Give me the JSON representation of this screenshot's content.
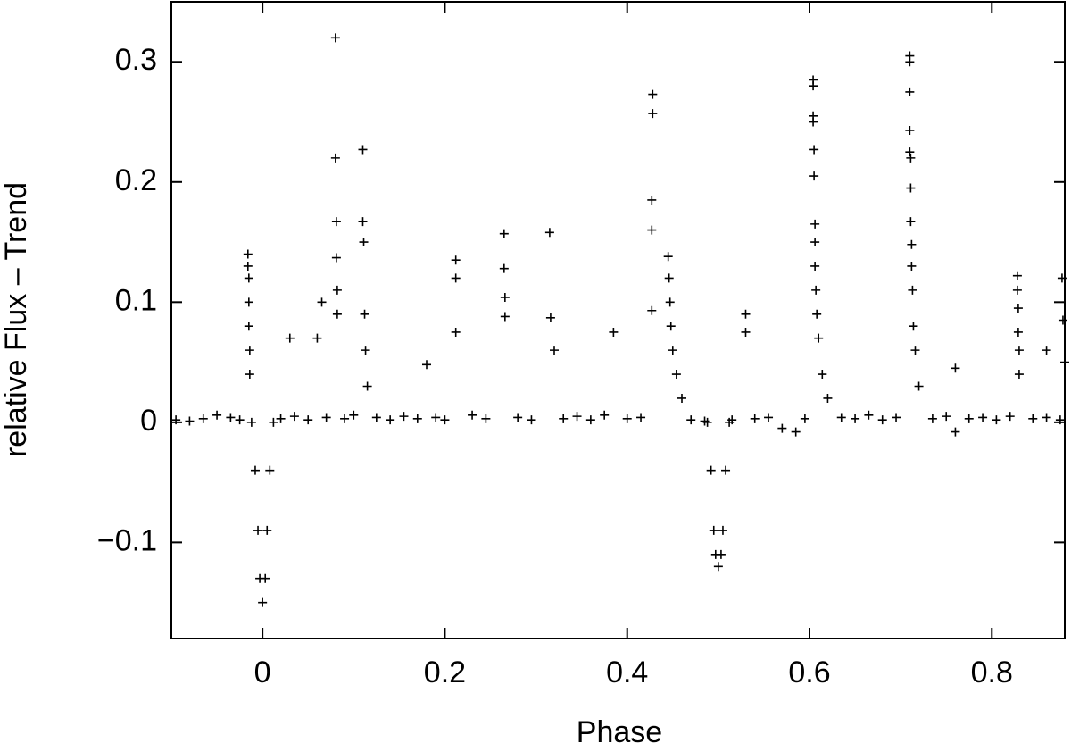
{
  "chart_data": {
    "type": "scatter",
    "xlabel": "Phase",
    "ylabel": "relative Flux – Trend",
    "color": "#000000",
    "marker": "+",
    "xlim": [
      -0.1,
      0.88
    ],
    "ylim": [
      -0.18,
      0.35
    ],
    "xticks": [
      0,
      0.2,
      0.4,
      0.6,
      0.8
    ],
    "yticks": [
      {
        "value": -0.1,
        "label": "−0.1"
      },
      0,
      0.1,
      0.2,
      0.3
    ],
    "x": [
      -0.095,
      -0.08,
      -0.065,
      -0.05,
      -0.035,
      -0.025,
      0.02,
      0.035,
      0.05,
      0.07,
      0.09,
      0.1,
      0.125,
      0.14,
      0.155,
      0.17,
      0.19,
      0.2,
      0.23,
      0.245,
      0.28,
      0.295,
      0.33,
      0.345,
      0.36,
      0.375,
      0.4,
      0.415,
      0.47,
      0.485,
      0.515,
      0.54,
      0.555,
      0.57,
      0.585,
      0.595,
      0.635,
      0.65,
      0.665,
      0.68,
      0.695,
      0.735,
      0.75,
      0.76,
      0.775,
      0.79,
      0.805,
      0.82,
      0.845,
      0.86,
      0.875,
      -0.012,
      -0.008,
      -0.005,
      -0.003,
      0,
      0.003,
      0.005,
      0.008,
      0.012,
      0.488,
      0.492,
      0.495,
      0.497,
      0.5,
      0.503,
      0.505,
      0.508,
      0.512,
      -0.016,
      -0.016,
      -0.015,
      -0.015,
      -0.015,
      -0.014,
      -0.014,
      0.08,
      0.08,
      0.081,
      0.081,
      0.082,
      0.082,
      0.11,
      0.11,
      0.111,
      0.112,
      0.113,
      0.115,
      0.212,
      0.212,
      0.212,
      0.265,
      0.265,
      0.266,
      0.266,
      0.315,
      0.316,
      0.428,
      0.428,
      0.427,
      0.427,
      0.427,
      0.445,
      0.446,
      0.447,
      0.448,
      0.45,
      0.454,
      0.46,
      0.604,
      0.604,
      0.604,
      0.604,
      0.605,
      0.605,
      0.606,
      0.606,
      0.606,
      0.607,
      0.608,
      0.61,
      0.614,
      0.62,
      0.71,
      0.71,
      0.71,
      0.71,
      0.71,
      0.711,
      0.711,
      0.711,
      0.712,
      0.712,
      0.713,
      0.714,
      0.716,
      0.72,
      0.828,
      0.828,
      0.829,
      0.829,
      0.83,
      0.83,
      0.877,
      0.878,
      0.88,
      0.03,
      0.065,
      0.18,
      0.385,
      0.53,
      0.53,
      0.86,
      0.76,
      0.32,
      0.06
    ],
    "values": [
      0.002,
      0.001,
      0.003,
      0.006,
      0.004,
      0.002,
      0.003,
      0.005,
      0.002,
      0.004,
      0.003,
      0.006,
      0.004,
      0.002,
      0.005,
      0.003,
      0.004,
      0.002,
      0.006,
      0.003,
      0.004,
      0.002,
      0.003,
      0.005,
      0.002,
      0.006,
      0.003,
      0.004,
      0.002,
      0.001,
      0.002,
      0.003,
      0.004,
      -0.005,
      -0.008,
      0.003,
      0.004,
      0.003,
      0.006,
      0.002,
      0.004,
      0.003,
      0.005,
      -0.008,
      0.003,
      0.004,
      0.002,
      0.005,
      0.003,
      0.004,
      0.002,
      0,
      -0.04,
      -0.09,
      -0.13,
      -0.15,
      -0.13,
      -0.09,
      -0.04,
      0,
      0,
      -0.04,
      -0.09,
      -0.11,
      -0.12,
      -0.11,
      -0.09,
      -0.04,
      0,
      0.14,
      0.13,
      0.12,
      0.1,
      0.08,
      0.06,
      0.04,
      0.32,
      0.22,
      0.167,
      0.137,
      0.11,
      0.09,
      0.227,
      0.167,
      0.15,
      0.09,
      0.06,
      0.03,
      0.135,
      0.12,
      0.075,
      0.157,
      0.128,
      0.104,
      0.088,
      0.158,
      0.087,
      0.273,
      0.257,
      0.185,
      0.16,
      0.093,
      0.138,
      0.12,
      0.1,
      0.08,
      0.06,
      0.04,
      0.02,
      0.285,
      0.28,
      0.255,
      0.25,
      0.227,
      0.205,
      0.165,
      0.15,
      0.13,
      0.11,
      0.09,
      0.07,
      0.04,
      0.02,
      0.305,
      0.3,
      0.275,
      0.243,
      0.225,
      0.22,
      0.195,
      0.167,
      0.148,
      0.13,
      0.11,
      0.08,
      0.06,
      0.03,
      0.122,
      0.11,
      0.095,
      0.075,
      0.06,
      0.04,
      0.12,
      0.085,
      0.05,
      0.07,
      0.1,
      0.048,
      0.075,
      0.09,
      0.075,
      0.06,
      0.045,
      0.06,
      0.07
    ]
  }
}
